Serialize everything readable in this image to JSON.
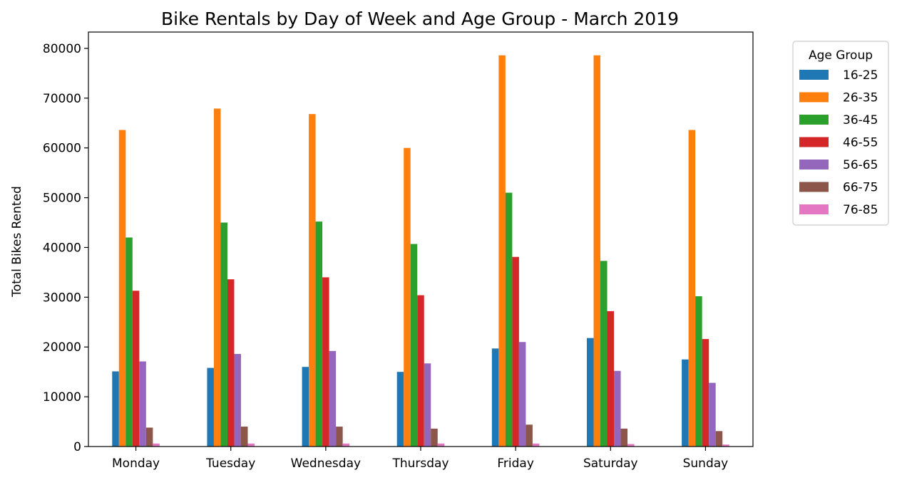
{
  "chart_data": {
    "type": "bar",
    "title": "Bike Rentals by Day of Week and Age Group - March 2019",
    "xlabel": "",
    "ylabel": "Total Bikes Rented",
    "ylim": [
      0,
      80000
    ],
    "yticks": [
      0,
      10000,
      20000,
      30000,
      40000,
      50000,
      60000,
      70000,
      80000
    ],
    "grid": false,
    "legend_title": "Age Group",
    "legend_position": "outside-top-right",
    "categories": [
      "Monday",
      "Tuesday",
      "Wednesday",
      "Thursday",
      "Friday",
      "Saturday",
      "Sunday"
    ],
    "series": [
      {
        "name": "16-25",
        "color": "#1f77b4",
        "values": [
          15100,
          15800,
          16000,
          15000,
          19700,
          21800,
          17500
        ]
      },
      {
        "name": "26-35",
        "color": "#ff7f0e",
        "values": [
          63600,
          67900,
          66800,
          60000,
          78600,
          78600,
          63600
        ]
      },
      {
        "name": "36-45",
        "color": "#2ca02c",
        "values": [
          42000,
          45000,
          45200,
          40700,
          51000,
          37300,
          30200
        ]
      },
      {
        "name": "46-55",
        "color": "#d62728",
        "values": [
          31300,
          33600,
          34000,
          30400,
          38100,
          27200,
          21600
        ]
      },
      {
        "name": "56-65",
        "color": "#9467bd",
        "values": [
          17100,
          18600,
          19200,
          16700,
          21000,
          15200,
          12800
        ]
      },
      {
        "name": "66-75",
        "color": "#8c564b",
        "values": [
          3800,
          4000,
          4000,
          3600,
          4400,
          3600,
          3100
        ]
      },
      {
        "name": "76-85",
        "color": "#e377c2",
        "values": [
          600,
          600,
          600,
          600,
          600,
          500,
          400
        ]
      }
    ]
  }
}
